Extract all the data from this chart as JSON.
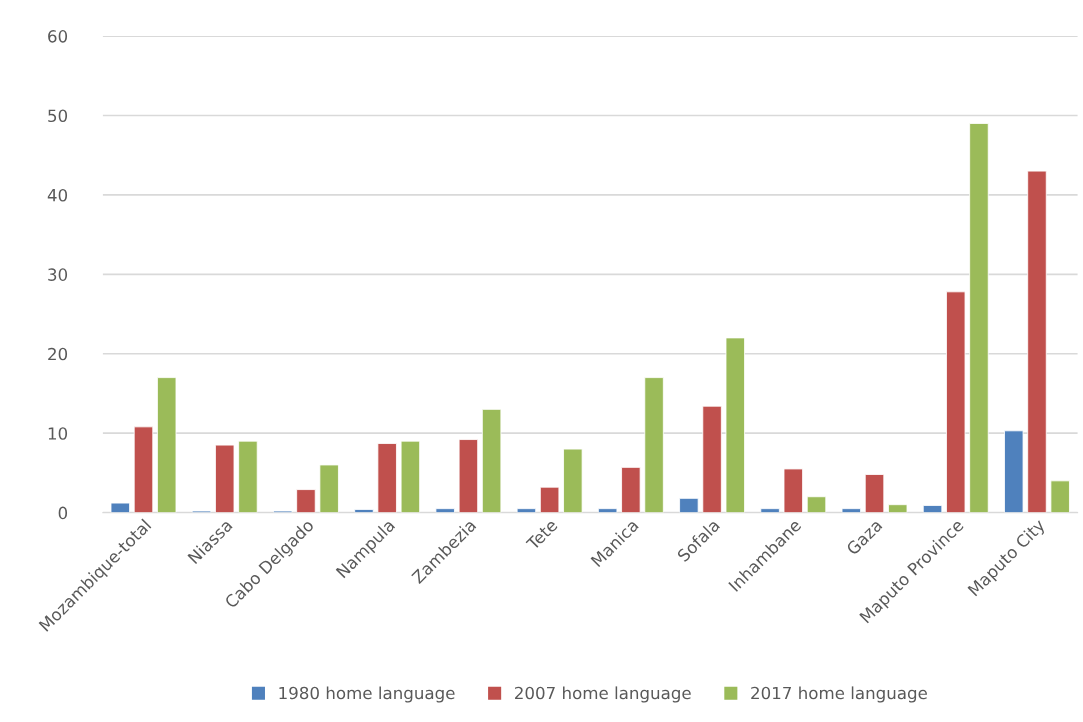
{
  "chart_data": {
    "type": "bar",
    "categories": [
      "Mozambique-total",
      "Niassa",
      "Cabo Delgado",
      "Nampula",
      "Zambezia",
      "Tete",
      "Manica",
      "Sofala",
      "Inhambane",
      "Gaza",
      "Maputo Province",
      "Maputo City"
    ],
    "series": [
      {
        "name": "1980 home language",
        "color": "#4f81bd",
        "values": [
          1.2,
          0.2,
          0.2,
          0.4,
          0.5,
          0.5,
          0.5,
          1.8,
          0.5,
          0.5,
          0.9,
          10.3
        ]
      },
      {
        "name": "2007 home language",
        "color": "#c0504d",
        "values": [
          10.8,
          8.5,
          2.9,
          8.7,
          9.2,
          3.2,
          5.7,
          13.4,
          5.5,
          4.8,
          27.8,
          43
        ]
      },
      {
        "name": "2017 home language",
        "color": "#9bbb59",
        "values": [
          17,
          9,
          6,
          9,
          13,
          8,
          17,
          22,
          2,
          1,
          49,
          4
        ]
      }
    ],
    "ylim": [
      0,
      60
    ],
    "yticks": [
      0,
      10,
      20,
      30,
      40,
      50,
      60
    ],
    "grid": "y",
    "legend": "bottom"
  }
}
